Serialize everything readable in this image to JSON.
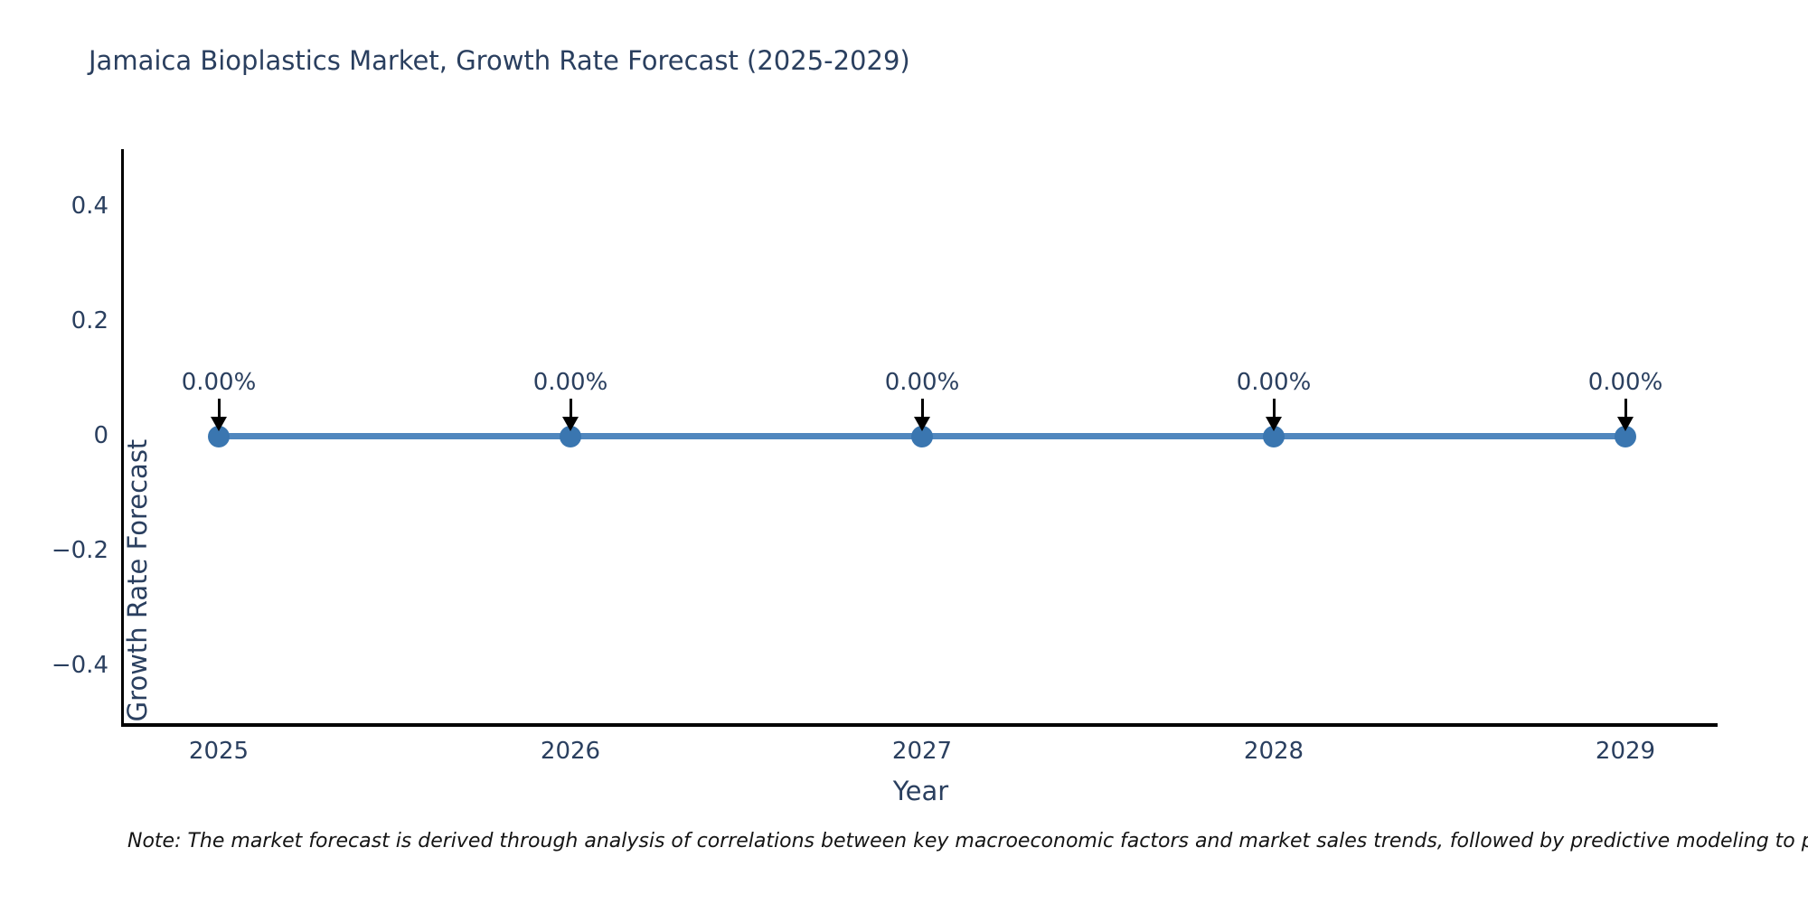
{
  "figure": {
    "title": "Jamaica Bioplastics Market, Growth Rate Forecast (2025-2029)",
    "note": "Note: The market forecast is derived through analysis of correlations between key macroeconomic factors and market sales trends, followed by predictive modeling to project future sales",
    "colors": {
      "title_text": "#2a3f5f",
      "tick_text": "#2a3f5f",
      "axis_line": "#000000",
      "trace_line": "#5087be",
      "marker": "#3a76b0",
      "arrow": "#000000",
      "note_text": "#141414",
      "background": "#ffffff"
    }
  },
  "chart_data": {
    "type": "line",
    "title": "Jamaica Bioplastics Market, Growth Rate Forecast (2025-2029)",
    "xlabel": "Year",
    "ylabel": "Growth Rate Forecast",
    "categories": [
      "2025",
      "2026",
      "2027",
      "2028",
      "2029"
    ],
    "series": [
      {
        "name": "Growth Rate Forecast",
        "values": [
          0,
          0,
          0,
          0,
          0
        ]
      }
    ],
    "data_labels": [
      "0.00%",
      "0.00%",
      "0.00%",
      "0.00%",
      "0.00%"
    ],
    "y_ticks": [
      "0.4",
      "0.2",
      "0",
      "−0.2",
      "−0.4"
    ],
    "y_tick_values": [
      0.4,
      0.2,
      0,
      -0.2,
      -0.4
    ],
    "ylim": [
      -0.5,
      0.5
    ],
    "grid": false,
    "legend": "none",
    "marker_style": "circle",
    "annotation_arrows": true
  }
}
